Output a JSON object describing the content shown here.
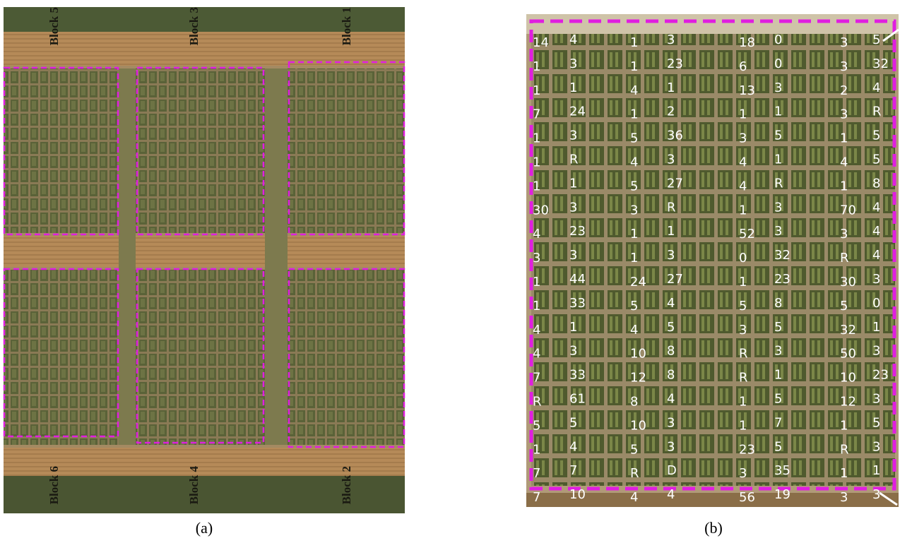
{
  "panel_a": {
    "label": "(a)",
    "blocks": [
      "Block 5",
      "Block 3",
      "Block 1",
      "Block 6",
      "Block 4",
      "Block 2"
    ]
  },
  "panel_b": {
    "label": "(b)",
    "grid": [
      [
        "14",
        "4",
        "1",
        "3",
        "18",
        "0",
        "3",
        "5"
      ],
      [
        "1",
        "3",
        "1",
        "23",
        "6",
        "0",
        "3",
        "32"
      ],
      [
        "1",
        "1",
        "4",
        "1",
        "13",
        "3",
        "2",
        "4"
      ],
      [
        "7",
        "24",
        "1",
        "2",
        "1",
        "1",
        "3",
        "R"
      ],
      [
        "1",
        "3",
        "5",
        "36",
        "3",
        "5",
        "1",
        "5"
      ],
      [
        "1",
        "R",
        "4",
        "3",
        "4",
        "1",
        "4",
        "5"
      ],
      [
        "1",
        "1",
        "5",
        "27",
        "4",
        "R",
        "1",
        "8"
      ],
      [
        "30",
        "3",
        "3",
        "R",
        "1",
        "3",
        "70",
        "4"
      ],
      [
        "4",
        "23",
        "1",
        "1",
        "52",
        "3",
        "3",
        "4"
      ],
      [
        "3",
        "3",
        "1",
        "3",
        "0",
        "32",
        "R",
        "4"
      ],
      [
        "1",
        "44",
        "24",
        "27",
        "1",
        "23",
        "30",
        "3"
      ],
      [
        "1",
        "33",
        "5",
        "4",
        "5",
        "8",
        "5",
        "0"
      ],
      [
        "4",
        "1",
        "4",
        "5",
        "3",
        "5",
        "32",
        "1"
      ],
      [
        "4",
        "3",
        "10",
        "8",
        "R",
        "3",
        "50",
        "3"
      ],
      [
        "7",
        "33",
        "12",
        "8",
        "R",
        "1",
        "10",
        "23"
      ],
      [
        "R",
        "61",
        "8",
        "4",
        "1",
        "5",
        "12",
        "3"
      ],
      [
        "5",
        "5",
        "10",
        "3",
        "1",
        "7",
        "1",
        "5"
      ],
      [
        "1",
        "4",
        "5",
        "3",
        "23",
        "5",
        "R",
        "3"
      ],
      [
        "7",
        "7",
        "R",
        "D",
        "3",
        "35",
        "1",
        "1"
      ],
      [
        "7",
        "10",
        "4",
        "4",
        "56",
        "19",
        "3",
        "3"
      ]
    ]
  }
}
